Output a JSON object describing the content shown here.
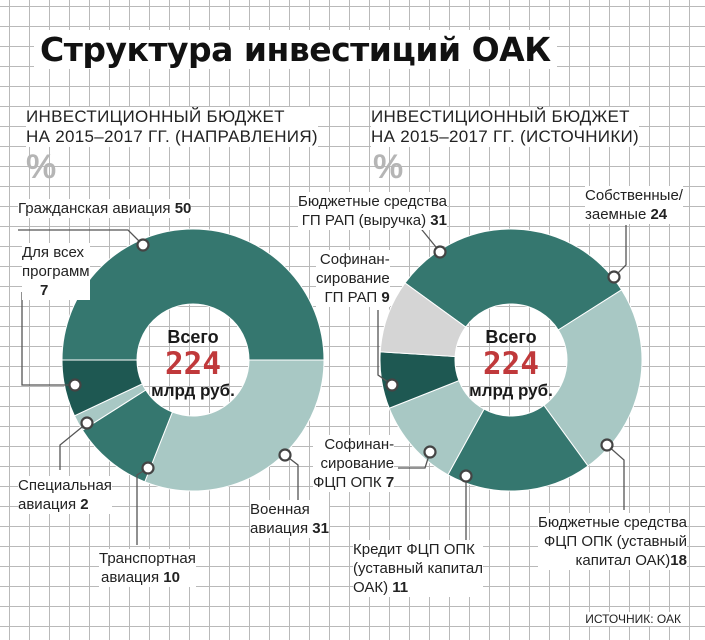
{
  "title": "Структура инвестиций ОАК",
  "left": {
    "subtitle1": "ИНВЕСТИЦИОННЫЙ БЮДЖЕТ",
    "subtitle2": "НА 2015–2017 ГГ. (НАПРАВЛЕНИЯ)",
    "unit": "%",
    "total_label": "Всего",
    "total_value": "224",
    "total_unit": "млрд руб."
  },
  "right": {
    "subtitle1": "ИНВЕСТИЦИОННЫЙ БЮДЖЕТ",
    "subtitle2": "НА 2015–2017 ГГ. (ИСТОЧНИКИ)",
    "unit": "%",
    "total_label": "Всего",
    "total_value": "224",
    "total_unit": "млрд руб."
  },
  "source": "ИСТОЧНИК: ОАК",
  "colors": {
    "teal": "#35776f",
    "dark_teal": "#1e5852",
    "light_teal": "#a8c8c4",
    "gray": "#d5d5d5",
    "accent_red": "#c0393b"
  },
  "chart_data": [
    {
      "type": "pie",
      "title": "ИНВЕСТИЦИОННЫЙ БЮДЖЕТ НА 2015–2017 ГГ. (НАПРАВЛЕНИЯ)",
      "slices": [
        {
          "label": "Гражданская авиация",
          "value": 50,
          "color": "#35776f"
        },
        {
          "label": "Военная авиация",
          "value": 31,
          "color": "#a8c8c4"
        },
        {
          "label": "Транспортная авиация",
          "value": 10,
          "color": "#35776f"
        },
        {
          "label": "Специальная авиация",
          "value": 2,
          "color": "#a8c8c4"
        },
        {
          "label": "Для всех программ",
          "value": 7,
          "color": "#1e5852"
        }
      ]
    },
    {
      "type": "pie",
      "title": "ИНВЕСТИЦИОННЫЙ БЮДЖЕТ НА 2015–2017 ГГ. (ИСТОЧНИКИ)",
      "slices": [
        {
          "label": "Бюджетные средства ГП РАП (выручка)",
          "value": 31,
          "color": "#35776f"
        },
        {
          "label": "Собственные/ заемные",
          "value": 24,
          "color": "#a8c8c4"
        },
        {
          "label": "Бюджетные средства ФЦП ОПК (уставный капитал ОАК)",
          "value": 18,
          "color": "#35776f"
        },
        {
          "label": "Кредит ФЦП ОПК (уставный капитал ОАК)",
          "value": 11,
          "color": "#a8c8c4"
        },
        {
          "label": "Софинансирование ФЦП ОПК",
          "value": 7,
          "color": "#1e5852"
        },
        {
          "label": "Софинансирование ГП РАП",
          "value": 9,
          "color": "#d5d5d5"
        }
      ]
    }
  ],
  "labels": {
    "civil_text": "Гражданская авиация",
    "civil_val": "50",
    "all_text1": "Для всех",
    "all_text2": "программ",
    "all_val": "7",
    "special_text1": "Специальная",
    "special_text2": "авиация",
    "special_val": "2",
    "transport_text1": "Транспортная",
    "transport_text2": "авиация",
    "transport_val": "10",
    "military_text1": "Военная",
    "military_text2": "авиация",
    "military_val": "31",
    "gp_text1": "Бюджетные средства",
    "gp_text2": "ГП РАП (выручка)",
    "gp_val": "31",
    "own_text1": "Собственные/",
    "own_text2": "заемные",
    "own_val": "24",
    "cogp_text1": "Софинан-",
    "cogp_text2": "сирование",
    "cogp_text3": "ГП РАП",
    "cogp_val": "9",
    "cofcp_text1": "Софинан-",
    "cofcp_text2": "сирование",
    "cofcp_text3": "ФЦП ОПК",
    "cofcp_val": "7",
    "credit_text1": "Кредит ФЦП ОПК",
    "credit_text2": "(уставный капитал",
    "credit_text3": "ОАК)",
    "credit_val": "11",
    "fcp_text1": "Бюджетные средства",
    "fcp_text2": "ФЦП ОПК (уставный",
    "fcp_text3": "капитал ОАК)",
    "fcp_val": "18"
  }
}
